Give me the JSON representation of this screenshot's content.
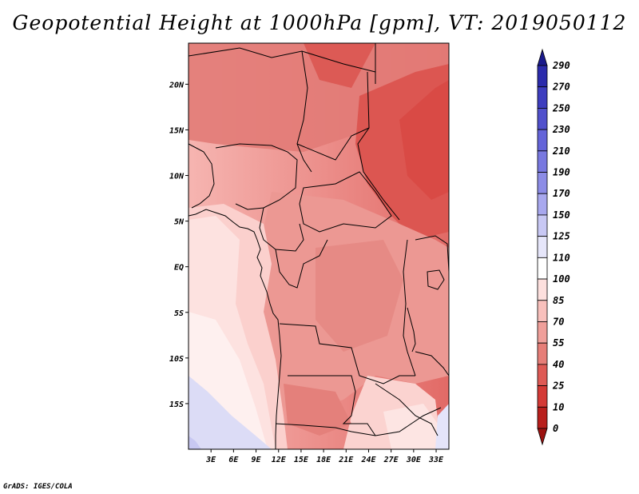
{
  "title": "Geopotential Height at 1000hPa [gpm], VT: 2019050112",
  "credit": "GrADS: IGES/COLA",
  "map": {
    "lon_range": [
      0,
      34.7
    ],
    "lat_range": [
      -20,
      24.5
    ],
    "x_ticks": [
      "3E",
      "6E",
      "9E",
      "12E",
      "15E",
      "18E",
      "21E",
      "24E",
      "27E",
      "30E",
      "33E"
    ],
    "x_tick_values": [
      3,
      6,
      9,
      12,
      15,
      18,
      21,
      24,
      27,
      30,
      33
    ],
    "y_ticks": [
      "20N",
      "15N",
      "10N",
      "5N",
      "EQ",
      "5S",
      "10S",
      "15S"
    ],
    "y_tick_values": [
      20,
      15,
      10,
      5,
      0,
      -5,
      -10,
      -15
    ]
  },
  "colorbar": {
    "levels": [
      "290",
      "270",
      "250",
      "230",
      "210",
      "190",
      "170",
      "150",
      "125",
      "110",
      "100",
      "85",
      "70",
      "55",
      "40",
      "25",
      "10",
      "0"
    ],
    "colors": [
      "#1a1a8c",
      "#2b2bac",
      "#3d3dbf",
      "#5050cc",
      "#6464d9",
      "#7878e0",
      "#8c8ce6",
      "#a8a8ee",
      "#c8c8f4",
      "#e6e6fa",
      "#ffffff",
      "#fde0de",
      "#f8c0bc",
      "#ef9f9a",
      "#e67e78",
      "#de5a55",
      "#d43a36",
      "#b81f1c",
      "#9c1210"
    ]
  },
  "colors": {
    "north": "#e07572",
    "east": "#db5550",
    "central": "#ea948f",
    "west_coast": "#fcd5d2",
    "ocean": "#fde7e5",
    "low": "#dcdcf8"
  }
}
